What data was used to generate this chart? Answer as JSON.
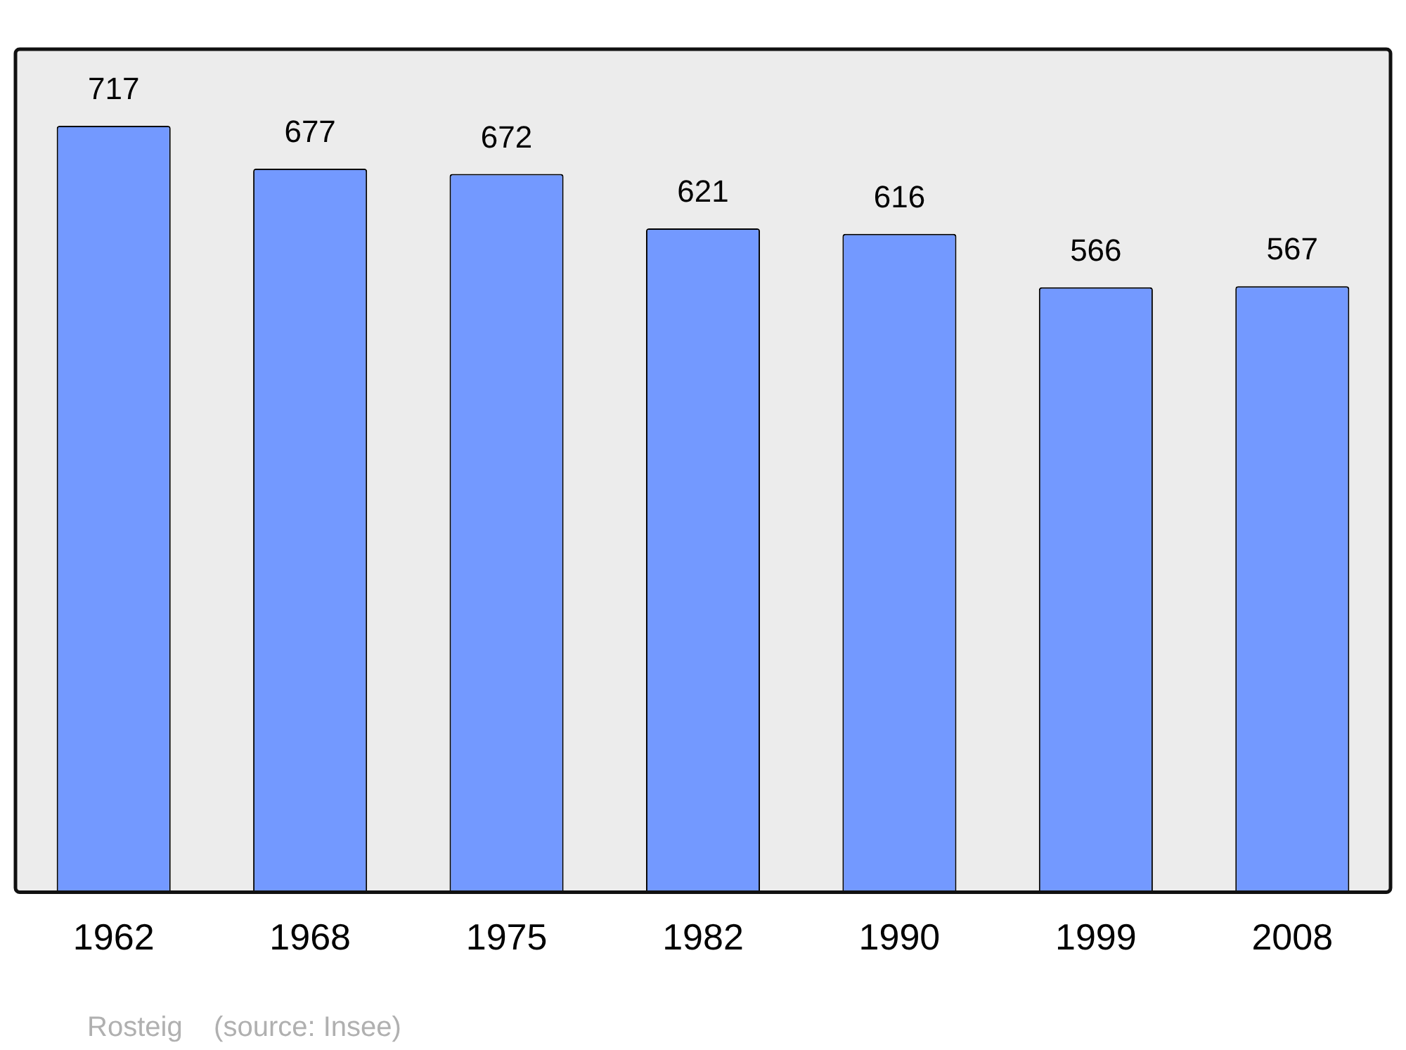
{
  "chart_data": {
    "type": "bar",
    "categories": [
      "1962",
      "1968",
      "1975",
      "1982",
      "1990",
      "1999",
      "2008"
    ],
    "values": [
      717,
      677,
      672,
      621,
      616,
      566,
      567
    ],
    "color": "#7399ff",
    "data_labels": true,
    "grid": false,
    "legend": false,
    "annotations": [
      "Rosteig    (source: Insee)"
    ]
  }
}
